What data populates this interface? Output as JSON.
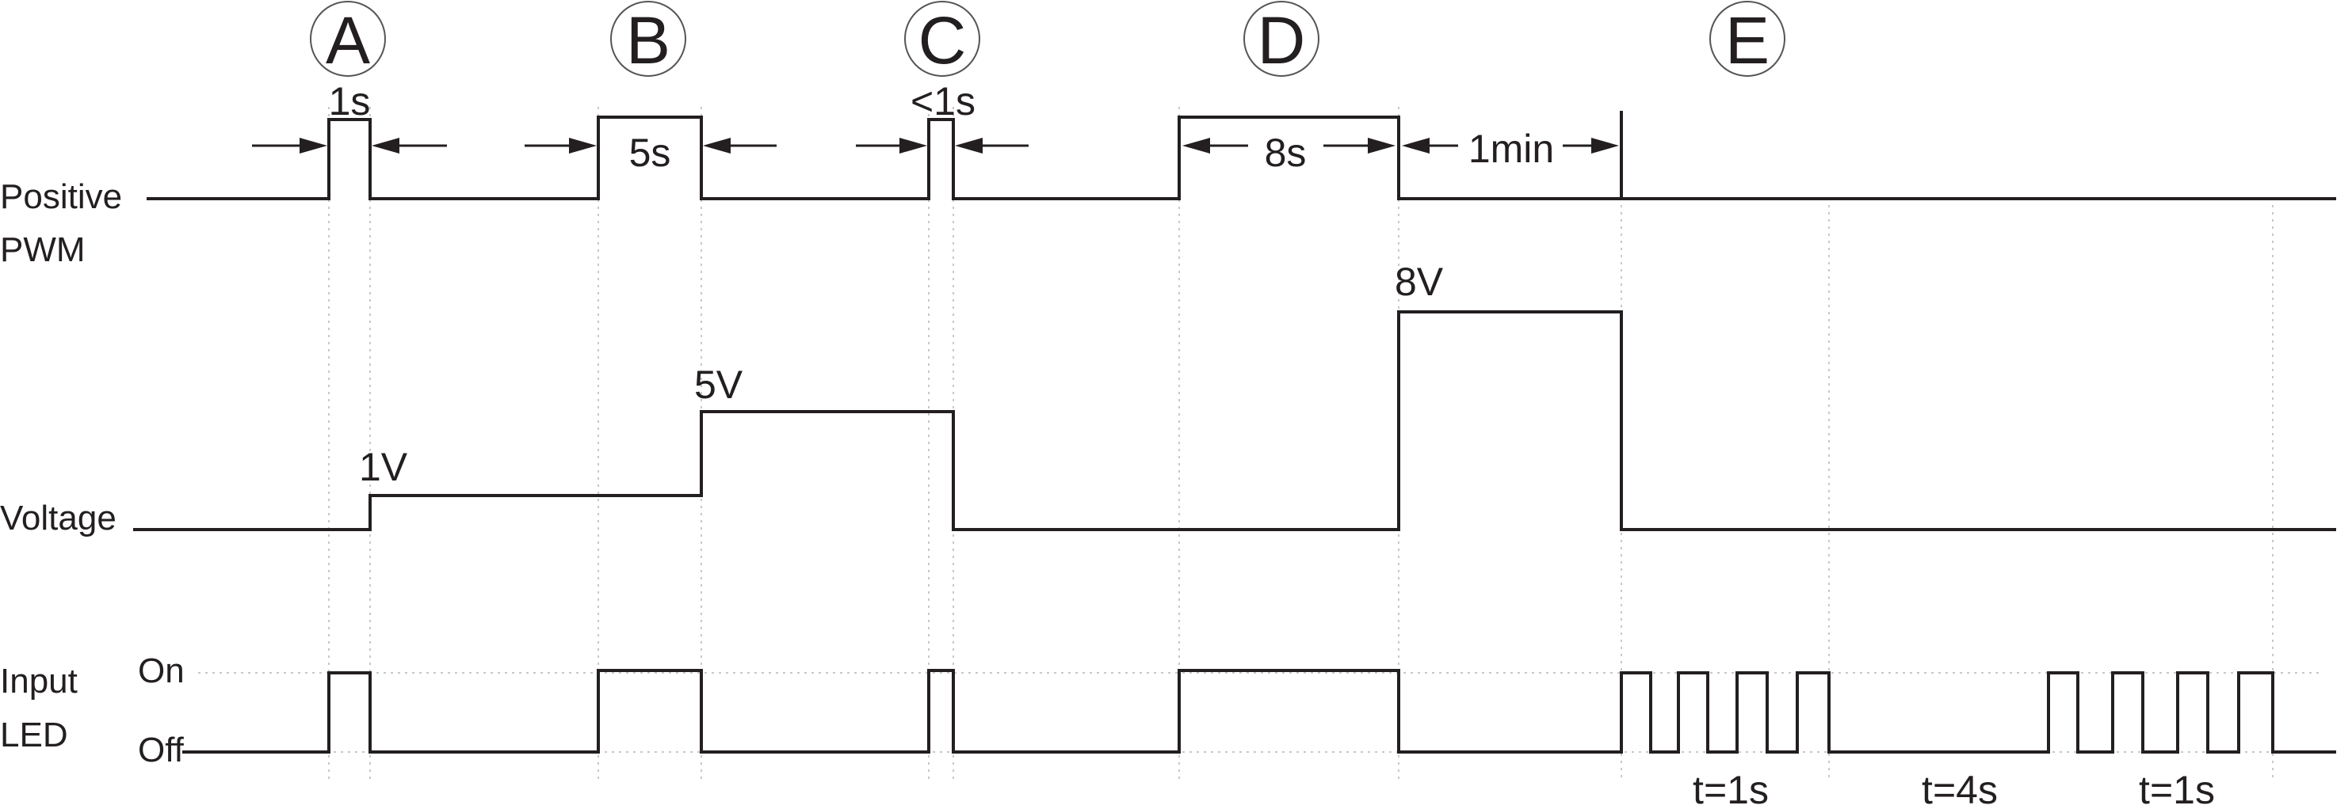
{
  "rows": {
    "pwm_label_line1": "Positive",
    "pwm_label_line2": "PWM",
    "voltage_label": "Voltage",
    "led_label_line1": "Input",
    "led_label_line2": "LED",
    "led_on": "On",
    "led_off": "Off"
  },
  "phases": [
    "A",
    "B",
    "C",
    "D",
    "E"
  ],
  "durations": {
    "a": "1s",
    "b": "5s",
    "c": "<1s",
    "d": "8s",
    "hold": "1min"
  },
  "voltages": {
    "v1": "1V",
    "v5": "5V",
    "v8": "8V"
  },
  "blink": {
    "fast1": "t=1s",
    "pause": "t=4s",
    "fast2": "t=1s"
  },
  "colors": {
    "ink": "#231f20",
    "guide": "#b5b5b5"
  }
}
